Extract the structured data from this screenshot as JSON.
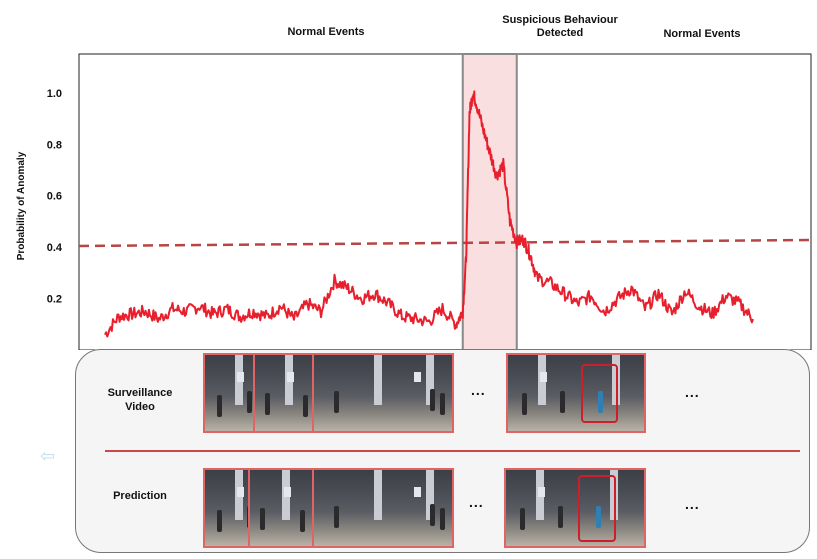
{
  "labels": {
    "normal_left": "Normal Events",
    "suspicious_line1": "Suspicious Behaviour",
    "suspicious_line2": "Detected",
    "normal_right": "Normal Events"
  },
  "chart_data": {
    "type": "line",
    "ylabel": "Probability of Anomaly",
    "xlabel": "",
    "yticks": [
      "1.0",
      "0.8",
      "0.6",
      "0.4",
      "0.2"
    ],
    "ylim": [
      0.0,
      1.05
    ],
    "threshold": 0.42,
    "highlight_range": [
      0.53,
      0.61
    ],
    "series": [
      {
        "color": "#e8202e",
        "x": [
          0.0,
          0.02,
          0.04,
          0.06,
          0.08,
          0.1,
          0.12,
          0.14,
          0.16,
          0.18,
          0.2,
          0.22,
          0.24,
          0.26,
          0.28,
          0.3,
          0.32,
          0.34,
          0.36,
          0.38,
          0.4,
          0.42,
          0.44,
          0.46,
          0.48,
          0.5,
          0.52,
          0.53,
          0.535,
          0.54,
          0.545,
          0.55,
          0.56,
          0.57,
          0.58,
          0.59,
          0.6,
          0.61,
          0.62,
          0.63,
          0.64,
          0.66,
          0.68,
          0.7,
          0.72,
          0.74,
          0.76,
          0.78,
          0.8,
          0.82,
          0.84,
          0.86,
          0.88,
          0.9,
          0.92,
          0.94,
          0.96
        ],
        "y": [
          0.06,
          0.13,
          0.14,
          0.15,
          0.12,
          0.16,
          0.15,
          0.17,
          0.14,
          0.16,
          0.13,
          0.15,
          0.13,
          0.17,
          0.12,
          0.18,
          0.15,
          0.27,
          0.24,
          0.2,
          0.22,
          0.18,
          0.13,
          0.12,
          0.11,
          0.16,
          0.1,
          0.15,
          0.36,
          0.92,
          1.0,
          0.96,
          0.86,
          0.77,
          0.68,
          0.72,
          0.5,
          0.42,
          0.43,
          0.37,
          0.28,
          0.26,
          0.22,
          0.18,
          0.21,
          0.15,
          0.2,
          0.24,
          0.16,
          0.22,
          0.14,
          0.23,
          0.17,
          0.14,
          0.21,
          0.18,
          0.12
        ]
      }
    ]
  },
  "panel": {
    "row1_line1": "Surveillance",
    "row1_line2": "Video",
    "row2_label": "Prediction",
    "dots_top_left": "...",
    "dots_top_right": "...",
    "dots_bottom_left": "...",
    "dots_bottom_right": "..."
  }
}
